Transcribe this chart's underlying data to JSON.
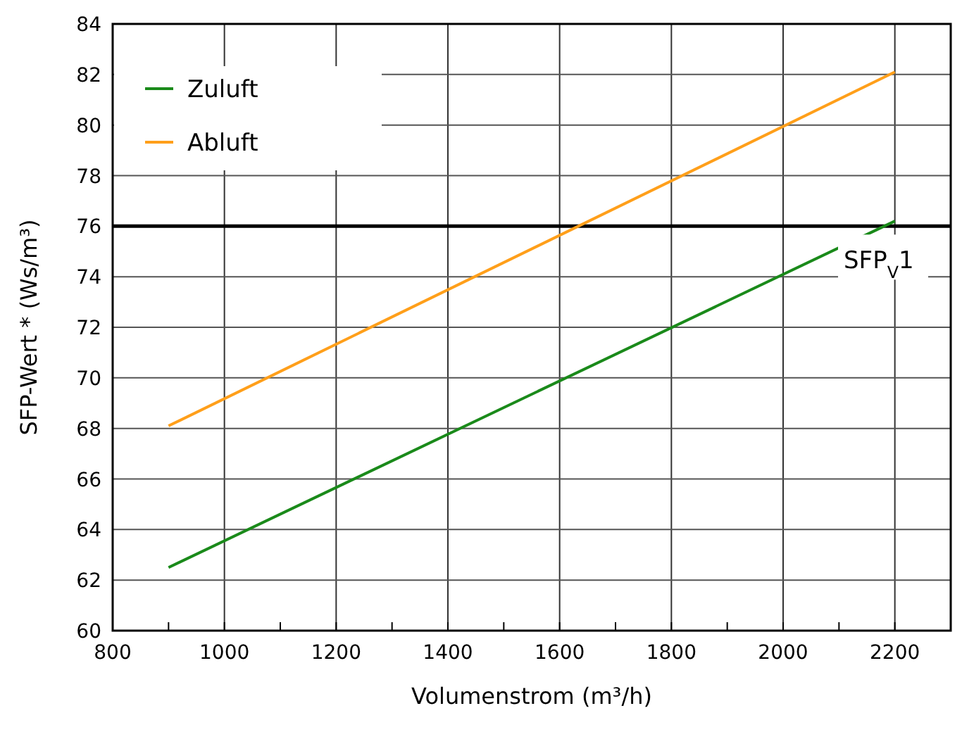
{
  "chart_data": {
    "type": "line",
    "xlabel": "Volumenstrom (m³/h)",
    "ylabel": "SFP-Wert * (Ws/m³)",
    "xlim": [
      800,
      2300
    ],
    "ylim": [
      60,
      84
    ],
    "xticks": [
      800,
      {
        "value": 900,
        "label": null
      },
      1000,
      {
        "value": 1100,
        "label": null
      },
      1200,
      {
        "value": 1300,
        "label": null
      },
      1400,
      {
        "value": 1500,
        "label": null
      },
      1600,
      {
        "value": 1700,
        "label": null
      },
      1800,
      {
        "value": 1900,
        "label": null
      },
      2000,
      {
        "value": 2100,
        "label": null
      },
      2200
    ],
    "yticks": [
      60,
      62,
      64,
      66,
      68,
      70,
      72,
      74,
      76,
      78,
      80,
      82,
      84
    ],
    "x": [
      900,
      2200
    ],
    "series": [
      {
        "name": "Zuluft",
        "color": "#1a8a1a",
        "values": [
          62.5,
          76.2
        ]
      },
      {
        "name": "Abluft",
        "color": "#ff9f1a",
        "values": [
          68.1,
          82.1
        ]
      }
    ],
    "ref_lines": [
      {
        "axis": "y",
        "value": 76,
        "label": "SFP$_{V}$1",
        "color": "#000000"
      }
    ],
    "grid": true,
    "legend": "top left",
    "marker": "none",
    "line_style": "solid"
  }
}
